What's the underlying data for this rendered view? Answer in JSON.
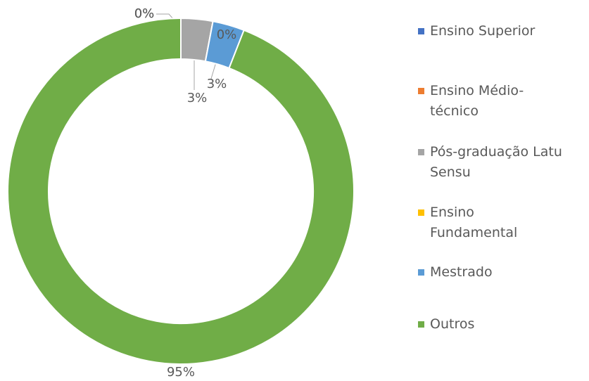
{
  "chart_data": {
    "type": "donut",
    "series": [
      {
        "name": "Ensino Superior",
        "color": "#4472c4",
        "values": [
          0
        ],
        "value_labels": [
          "0%"
        ]
      },
      {
        "name": "Ensino Médio-técnico",
        "color": "#ed7d31",
        "values": [
          0
        ],
        "value_labels": [
          "0%"
        ]
      },
      {
        "name": "Pós-graduação Latu Sensu",
        "color": "#a5a5a5",
        "values": [
          3
        ],
        "value_labels": [
          "3%"
        ]
      },
      {
        "name": "Ensino Fundamental",
        "color": "#ffc000",
        "values": [
          0
        ],
        "value_labels": [
          "0%"
        ]
      },
      {
        "name": "Mestrado",
        "color": "#5b9bd5",
        "values": [
          3
        ],
        "value_labels": [
          "3%"
        ]
      },
      {
        "name": "Outros",
        "color": "#70ad47",
        "values": [
          95
        ],
        "value_labels": [
          "95%"
        ]
      }
    ]
  }
}
